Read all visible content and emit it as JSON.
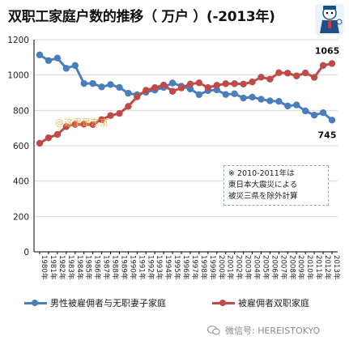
{
  "title": "双职工家庭户数的推移（ 万户 ）(-2013年)",
  "note": [
    "※ 2010-2011年は",
    "東日本大震災による",
    "被災三県を除外計算"
  ],
  "watermark": "微信号: HEREISTOKYO",
  "stamp": "@这里是东京",
  "colors": {
    "series1": "#4a7ebb",
    "series2": "#be4b48",
    "grid": "#d9d9d9",
    "axis": "#000000"
  },
  "chart_data": {
    "type": "line",
    "title": "双职工家庭户数的推移（ 万户 ）(-2013年)",
    "xlabel": "",
    "ylabel": "",
    "ylim": [
      0,
      1200
    ],
    "yticks": [
      0,
      200,
      400,
      600,
      800,
      1000,
      1200
    ],
    "grid": true,
    "legend": "bottom",
    "x": [
      "1980年",
      "1981年",
      "1982年",
      "1983年",
      "1984年",
      "1985年",
      "1986年",
      "1987年",
      "1988年",
      "1989年",
      "1990年",
      "1991年",
      "1992年",
      "1993年",
      "1994年",
      "1995年",
      "1996年",
      "1997年",
      "1998年",
      "1999年",
      "2000年",
      "2001年",
      "2002年",
      "2003年",
      "2004年",
      "2005年",
      "2006年",
      "2007年",
      "2008年",
      "2009年",
      "2010年",
      "2011年",
      "2012年",
      "2013年"
    ],
    "series": [
      {
        "name": "男性被雇佣者与无职妻子家庭",
        "color": "#4a7ebb",
        "values": [
          1114,
          1082,
          1096,
          1038,
          1054,
          952,
          952,
          933,
          946,
          930,
          897,
          888,
          903,
          915,
          930,
          955,
          937,
          921,
          889,
          912,
          916,
          890,
          894,
          870,
          875,
          863,
          854,
          851,
          825,
          831,
          797,
          773,
          787,
          745
        ]
      },
      {
        "name": "被雇佣者双职家庭",
        "color": "#be4b48",
        "values": [
          614,
          645,
          664,
          708,
          721,
          722,
          720,
          748,
          771,
          783,
          823,
          877,
          914,
          929,
          943,
          908,
          927,
          949,
          956,
          929,
          942,
          951,
          951,
          949,
          961,
          988,
          977,
          1013,
          1011,
          995,
          1012,
          987,
          1054,
          1065
        ]
      }
    ],
    "annotations": [
      {
        "text": "1065",
        "series": 1,
        "point": 33
      },
      {
        "text": "745",
        "series": 0,
        "point": 33
      }
    ]
  }
}
